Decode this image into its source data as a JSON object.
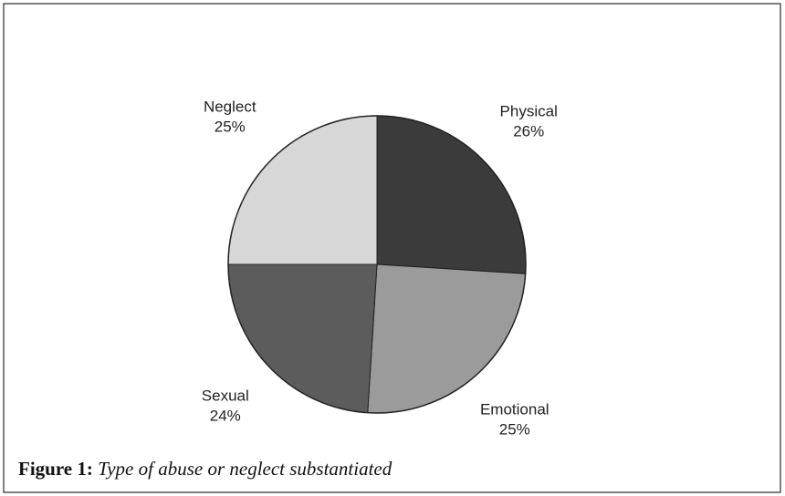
{
  "chart_data": {
    "type": "pie",
    "categories": [
      "Physical",
      "Emotional",
      "Sexual",
      "Neglect"
    ],
    "values": [
      26,
      25,
      24,
      25
    ],
    "value_labels": [
      "26%",
      "25%",
      "24%",
      "25%"
    ],
    "colors": [
      "#3b3b3b",
      "#9b9b9b",
      "#5c5c5c",
      "#d7d7d7"
    ]
  },
  "caption": {
    "label": "Figure 1:",
    "text": "Type of abuse or neglect substantiated"
  }
}
